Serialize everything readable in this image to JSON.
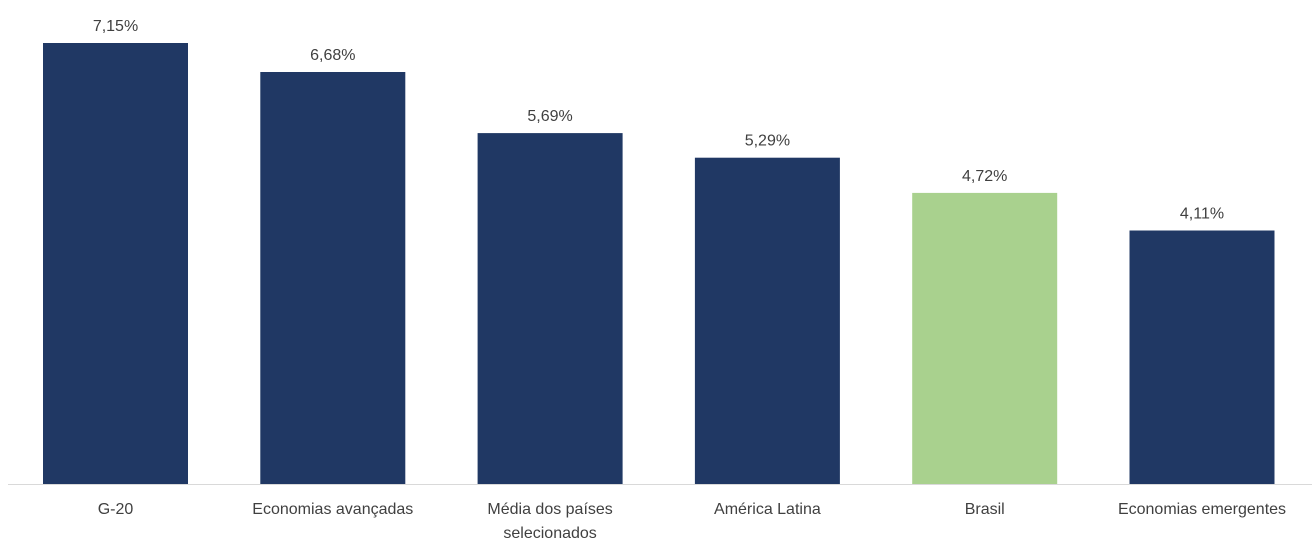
{
  "chart_data": {
    "type": "bar",
    "title": "",
    "xlabel": "",
    "ylabel": "",
    "categories": [
      "G-20",
      "Economias avançadas",
      "Média dos países selecionados",
      "América Latina",
      "Brasil",
      "Economias emergentes"
    ],
    "values": [
      7.15,
      6.68,
      5.69,
      5.29,
      4.72,
      4.11
    ],
    "value_labels": [
      "7,15%",
      "6,68%",
      "5,69%",
      "5,29%",
      "4,72%",
      "4,11%"
    ],
    "ylim": [
      0,
      7.15
    ],
    "grid": false,
    "legend": "none",
    "colors": {
      "default_bar": "#203864",
      "highlight_bar": "#A9D18E",
      "axis_line": "#D9D9D9",
      "text": "#404040"
    },
    "highlight_category": "Brasil"
  }
}
